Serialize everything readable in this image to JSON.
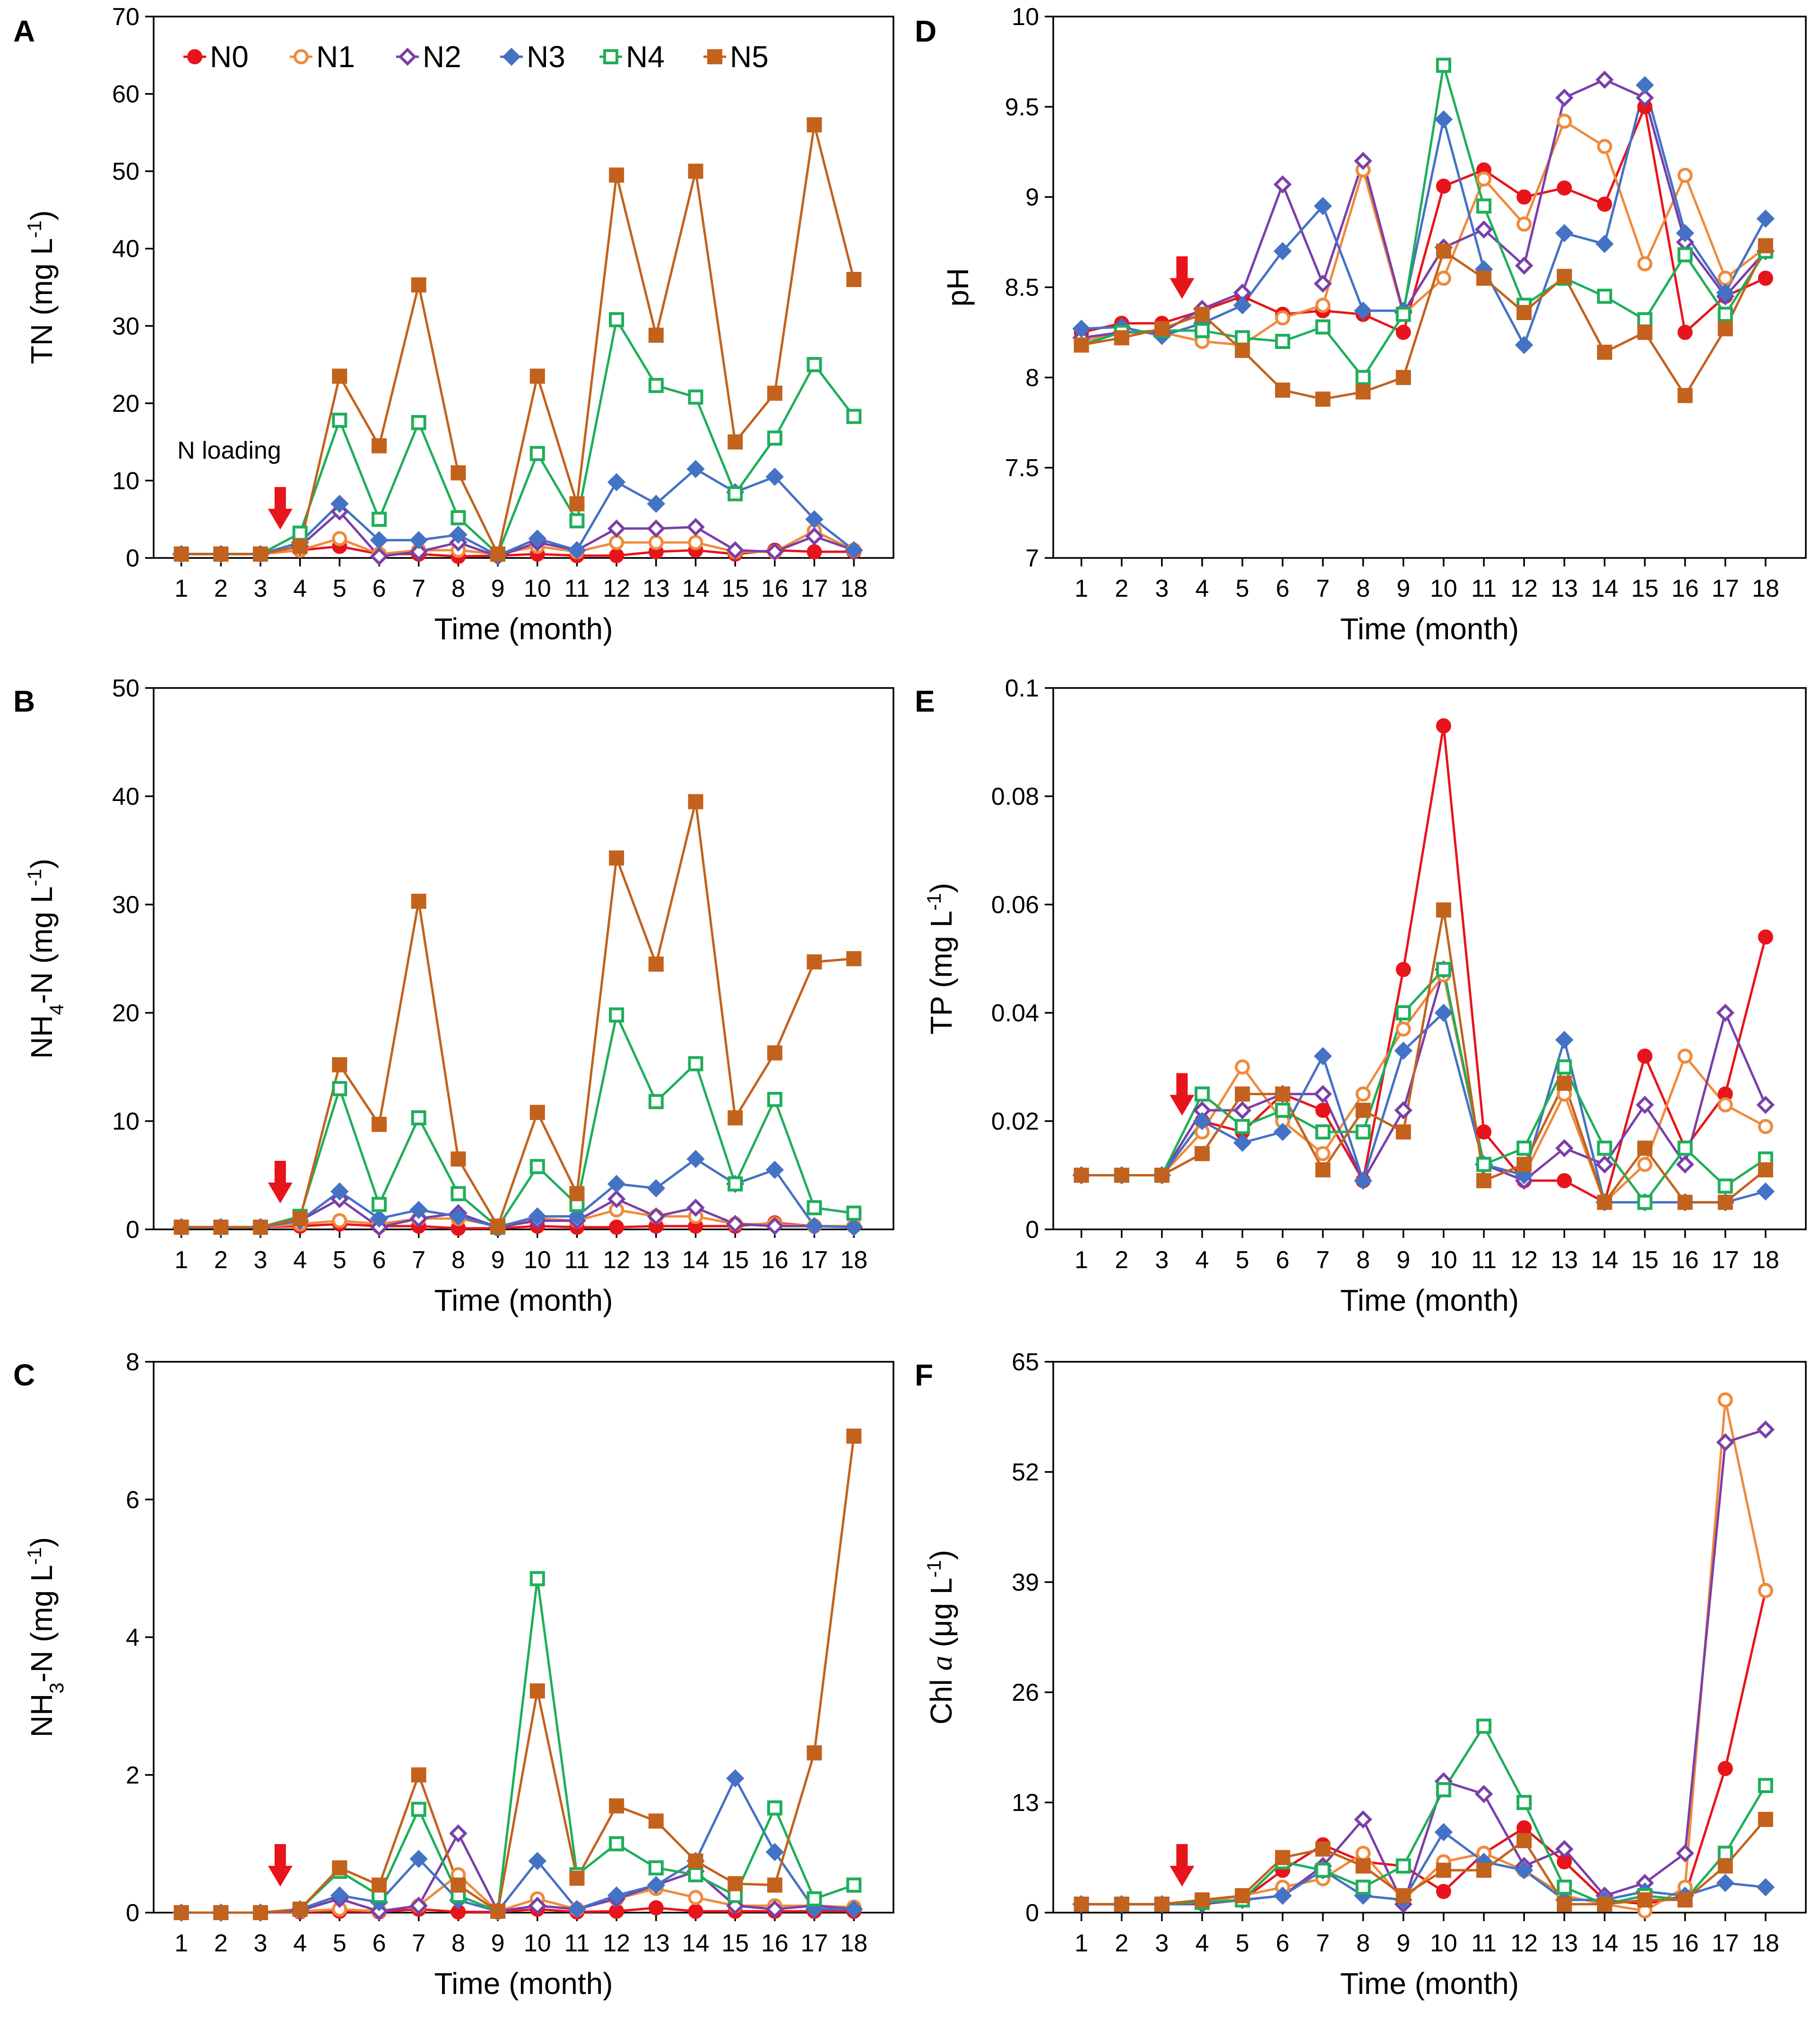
{
  "figure": {
    "legend_entries": [
      "N0",
      "N1",
      "N2",
      "N3",
      "N4",
      "N5"
    ]
  },
  "chart_data": [
    {
      "panel": "A",
      "type": "line",
      "xlabel": "Time (month)",
      "ylabel": "TN (mg L-1)",
      "ylabel_parts": [
        "TN (mg L",
        "-1",
        ")"
      ],
      "ylim": [
        0,
        70
      ],
      "yticks": [
        0,
        10,
        20,
        30,
        40,
        50,
        60,
        70
      ],
      "ytick_labels": [
        "0",
        "10",
        "20",
        "30",
        "40",
        "50",
        "60",
        "70"
      ],
      "annotation": "N loading",
      "arrow_at_x": 3.5,
      "x": [
        1,
        2,
        3,
        4,
        5,
        6,
        7,
        8,
        9,
        10,
        11,
        12,
        13,
        14,
        15,
        16,
        17,
        18
      ],
      "series": [
        {
          "name": "N0",
          "values": [
            0.5,
            0.5,
            0.5,
            1.0,
            1.5,
            0.5,
            0.5,
            0.2,
            0.3,
            0.5,
            0.3,
            0.3,
            0.8,
            1.0,
            0.5,
            1.0,
            0.8,
            0.8
          ]
        },
        {
          "name": "N1",
          "values": [
            0.5,
            0.5,
            0.5,
            1.0,
            2.5,
            0.5,
            1.0,
            1.0,
            0.5,
            1.5,
            0.8,
            2.0,
            2.0,
            2.0,
            0.8,
            0.8,
            3.5,
            1.0
          ]
        },
        {
          "name": "N2",
          "values": [
            0.5,
            0.5,
            0.5,
            1.5,
            6.0,
            0.2,
            0.8,
            2.0,
            0.2,
            2.0,
            1.0,
            3.8,
            3.8,
            4.0,
            1.0,
            0.8,
            2.8,
            1.0
          ]
        },
        {
          "name": "N3",
          "values": [
            0.5,
            0.5,
            0.5,
            2.0,
            7.0,
            2.3,
            2.3,
            3.0,
            0.3,
            2.5,
            1.0,
            9.8,
            7.0,
            11.5,
            8.5,
            10.5,
            5.0,
            1.0
          ]
        },
        {
          "name": "N4",
          "values": [
            0.5,
            0.5,
            0.5,
            3.2,
            17.8,
            5.0,
            17.5,
            5.2,
            0.5,
            13.5,
            4.8,
            30.8,
            22.3,
            20.8,
            8.3,
            15.5,
            25.0,
            18.3
          ]
        },
        {
          "name": "N5",
          "values": [
            0.5,
            0.5,
            0.5,
            1.5,
            23.5,
            14.5,
            35.3,
            11.0,
            0.5,
            23.5,
            7.0,
            49.5,
            28.8,
            50.0,
            15.0,
            21.3,
            56.0,
            36.0
          ]
        }
      ]
    },
    {
      "panel": "B",
      "type": "line",
      "xlabel": "Time (month)",
      "ylabel": "NH4-N (mg L-1)",
      "ylabel_parts": [
        "NH",
        "4",
        "-N (mg L",
        "-1",
        ")"
      ],
      "ylim": [
        0,
        50
      ],
      "yticks": [
        0,
        10,
        20,
        30,
        40,
        50
      ],
      "ytick_labels": [
        "0",
        "10",
        "20",
        "30",
        "40",
        "50"
      ],
      "arrow_at_x": 3.5,
      "x": [
        1,
        2,
        3,
        4,
        5,
        6,
        7,
        8,
        9,
        10,
        11,
        12,
        13,
        14,
        15,
        16,
        17,
        18
      ],
      "series": [
        {
          "name": "N0",
          "values": [
            0.2,
            0.2,
            0.2,
            0.3,
            0.5,
            0.3,
            0.3,
            0.1,
            0.1,
            0.3,
            0.2,
            0.2,
            0.3,
            0.3,
            0.3,
            0.6,
            0.3,
            0.3
          ]
        },
        {
          "name": "N1",
          "values": [
            0.2,
            0.2,
            0.2,
            0.5,
            0.8,
            0.5,
            1.0,
            1.0,
            0.3,
            1.0,
            0.8,
            1.8,
            1.2,
            1.2,
            0.5,
            0.5,
            0.3,
            0.3
          ]
        },
        {
          "name": "N2",
          "values": [
            0.2,
            0.2,
            0.2,
            0.8,
            2.8,
            0.2,
            1.0,
            1.5,
            0.2,
            0.8,
            0.8,
            2.8,
            1.2,
            2.0,
            0.5,
            0.3,
            0.3,
            0.2
          ]
        },
        {
          "name": "N3",
          "values": [
            0.2,
            0.2,
            0.2,
            0.8,
            3.5,
            1.0,
            1.8,
            1.2,
            0.2,
            1.2,
            1.2,
            4.2,
            3.8,
            6.5,
            4.2,
            5.5,
            0.3,
            0.2
          ]
        },
        {
          "name": "N4",
          "values": [
            0.2,
            0.2,
            0.2,
            1.2,
            13.0,
            2.3,
            10.3,
            3.3,
            0.2,
            5.8,
            2.3,
            19.8,
            11.8,
            15.3,
            4.2,
            12.0,
            2.0,
            1.5
          ]
        },
        {
          "name": "N5",
          "values": [
            0.2,
            0.2,
            0.2,
            1.0,
            15.2,
            9.7,
            30.3,
            6.5,
            0.3,
            10.8,
            3.3,
            34.3,
            24.5,
            39.5,
            10.3,
            16.3,
            24.7,
            25.0
          ]
        }
      ]
    },
    {
      "panel": "C",
      "type": "line",
      "xlabel": "Time (month)",
      "ylabel": "NH3-N (mg L-1)",
      "ylabel_parts": [
        "NH",
        "3",
        "-N (mg L",
        "-1",
        ")"
      ],
      "ylim": [
        0,
        8
      ],
      "yticks": [
        0,
        2,
        4,
        6,
        8
      ],
      "ytick_labels": [
        "0",
        "2",
        "4",
        "6",
        "8"
      ],
      "arrow_at_x": 3.5,
      "x": [
        1,
        2,
        3,
        4,
        5,
        6,
        7,
        8,
        9,
        10,
        11,
        12,
        13,
        14,
        15,
        16,
        17,
        18
      ],
      "series": [
        {
          "name": "N0",
          "values": [
            0,
            0,
            0,
            0.01,
            0.02,
            0.01,
            0.05,
            0.01,
            0.01,
            0.05,
            0.01,
            0.02,
            0.07,
            0.02,
            0.02,
            0.02,
            0.02,
            0.02
          ]
        },
        {
          "name": "N1",
          "values": [
            0,
            0,
            0,
            0.02,
            0.05,
            0.02,
            0.1,
            0.55,
            0.02,
            0.2,
            0.05,
            0.2,
            0.35,
            0.22,
            0.1,
            0.1,
            0.1,
            0.08
          ]
        },
        {
          "name": "N2",
          "values": [
            0,
            0,
            0,
            0.03,
            0.2,
            0.02,
            0.1,
            1.15,
            0.02,
            0.1,
            0.05,
            0.2,
            0.4,
            0.6,
            0.1,
            0.05,
            0.1,
            0.05
          ]
        },
        {
          "name": "N3",
          "values": [
            0,
            0,
            0,
            0.05,
            0.25,
            0.15,
            0.78,
            0.18,
            0.02,
            0.75,
            0.05,
            0.25,
            0.4,
            0.75,
            1.95,
            0.88,
            0.05,
            0.05
          ]
        },
        {
          "name": "N4",
          "values": [
            0,
            0,
            0,
            0.05,
            0.6,
            0.25,
            1.5,
            0.25,
            0.02,
            4.85,
            0.55,
            1.0,
            0.65,
            0.55,
            0.25,
            1.52,
            0.2,
            0.4
          ]
        },
        {
          "name": "N5",
          "values": [
            0,
            0,
            0,
            0.05,
            0.65,
            0.4,
            2.0,
            0.4,
            0.02,
            3.22,
            0.5,
            1.55,
            1.33,
            0.75,
            0.42,
            0.4,
            2.32,
            6.92
          ]
        }
      ]
    },
    {
      "panel": "D",
      "type": "line",
      "xlabel": "Time (month)",
      "ylabel": "pH",
      "ylabel_parts": [
        "pH"
      ],
      "ylim": [
        7,
        10
      ],
      "yticks": [
        7,
        7.5,
        8,
        8.5,
        9,
        9.5,
        10
      ],
      "ytick_labels": [
        "7",
        "7.5",
        "8",
        "8.5",
        "9",
        "9.5",
        "10"
      ],
      "arrow_at_x": 3.5,
      "x": [
        1,
        2,
        3,
        4,
        5,
        6,
        7,
        8,
        9,
        10,
        11,
        12,
        13,
        14,
        15,
        16,
        17,
        18
      ],
      "series": [
        {
          "name": "N0",
          "values": [
            8.25,
            8.3,
            8.3,
            8.37,
            8.45,
            8.35,
            8.37,
            8.35,
            8.25,
            9.06,
            9.15,
            9.0,
            9.05,
            8.96,
            9.5,
            8.25,
            8.45,
            8.55
          ]
        },
        {
          "name": "N1",
          "values": [
            8.2,
            8.25,
            8.25,
            8.2,
            8.18,
            8.33,
            8.4,
            9.15,
            8.35,
            8.55,
            9.1,
            8.85,
            9.42,
            9.28,
            8.63,
            9.12,
            8.55,
            8.72
          ]
        },
        {
          "name": "N2",
          "values": [
            8.22,
            8.25,
            8.25,
            8.38,
            8.47,
            9.07,
            8.52,
            9.2,
            8.36,
            8.72,
            8.82,
            8.62,
            9.55,
            9.65,
            9.55,
            8.75,
            8.45,
            8.7
          ]
        },
        {
          "name": "N3",
          "values": [
            8.27,
            8.28,
            8.23,
            8.3,
            8.4,
            8.7,
            8.95,
            8.37,
            8.37,
            9.43,
            8.6,
            8.18,
            8.8,
            8.74,
            9.62,
            8.8,
            8.47,
            8.88
          ]
        },
        {
          "name": "N4",
          "values": [
            8.18,
            8.25,
            8.26,
            8.26,
            8.22,
            8.2,
            8.28,
            8.0,
            8.35,
            9.73,
            8.95,
            8.4,
            8.55,
            8.45,
            8.32,
            8.68,
            8.35,
            8.7
          ]
        },
        {
          "name": "N5",
          "values": [
            8.18,
            8.22,
            8.27,
            8.35,
            8.15,
            7.93,
            7.88,
            7.92,
            8.0,
            8.7,
            8.55,
            8.36,
            8.56,
            8.14,
            8.25,
            7.9,
            8.27,
            8.73
          ]
        }
      ]
    },
    {
      "panel": "E",
      "type": "line",
      "xlabel": "Time (month)",
      "ylabel": "TP (mg L-1)",
      "ylabel_parts": [
        "TP (mg L",
        "-1",
        ")"
      ],
      "ylim": [
        0,
        0.1
      ],
      "yticks": [
        0,
        0.02,
        0.04,
        0.06,
        0.08,
        0.1
      ],
      "ytick_labels": [
        "0",
        "0.02",
        "0.04",
        "0.06",
        "0.08",
        "0.1"
      ],
      "arrow_at_x": 3.5,
      "x": [
        1,
        2,
        3,
        4,
        5,
        6,
        7,
        8,
        9,
        10,
        11,
        12,
        13,
        14,
        15,
        16,
        17,
        18
      ],
      "series": [
        {
          "name": "N0",
          "values": [
            0.01,
            0.01,
            0.01,
            0.02,
            0.018,
            0.025,
            0.022,
            0.009,
            0.048,
            0.093,
            0.018,
            0.009,
            0.009,
            0.005,
            0.032,
            0.015,
            0.025,
            0.054
          ]
        },
        {
          "name": "N1",
          "values": [
            0.01,
            0.01,
            0.01,
            0.018,
            0.03,
            0.02,
            0.014,
            0.025,
            0.037,
            0.047,
            0.012,
            0.01,
            0.025,
            0.005,
            0.012,
            0.032,
            0.023,
            0.019
          ]
        },
        {
          "name": "N2",
          "values": [
            0.01,
            0.01,
            0.01,
            0.022,
            0.022,
            0.025,
            0.025,
            0.009,
            0.022,
            0.048,
            0.012,
            0.009,
            0.015,
            0.012,
            0.023,
            0.012,
            0.04,
            0.023
          ]
        },
        {
          "name": "N3",
          "values": [
            0.01,
            0.01,
            0.01,
            0.02,
            0.016,
            0.018,
            0.032,
            0.009,
            0.033,
            0.04,
            0.012,
            0.01,
            0.035,
            0.005,
            0.005,
            0.005,
            0.005,
            0.007
          ]
        },
        {
          "name": "N4",
          "values": [
            0.01,
            0.01,
            0.01,
            0.025,
            0.019,
            0.022,
            0.018,
            0.018,
            0.04,
            0.048,
            0.012,
            0.015,
            0.03,
            0.015,
            0.005,
            0.015,
            0.008,
            0.013
          ]
        },
        {
          "name": "N5",
          "values": [
            0.01,
            0.01,
            0.01,
            0.014,
            0.025,
            0.025,
            0.011,
            0.022,
            0.018,
            0.059,
            0.009,
            0.012,
            0.027,
            0.005,
            0.015,
            0.005,
            0.005,
            0.011
          ]
        }
      ]
    },
    {
      "panel": "F",
      "type": "line",
      "xlabel": "Time (month)",
      "ylabel": "Chl a (μg L-1)",
      "ylabel_parts": [
        "Chl ",
        "a",
        " (μg L",
        "-1",
        ")"
      ],
      "ylim": [
        0,
        65
      ],
      "yticks": [
        0,
        13,
        26,
        39,
        52,
        65
      ],
      "ytick_labels": [
        "0",
        "13",
        "26",
        "39",
        "52",
        "65"
      ],
      "arrow_at_x": 3.5,
      "x": [
        1,
        2,
        3,
        4,
        5,
        6,
        7,
        8,
        9,
        10,
        11,
        12,
        13,
        14,
        15,
        16,
        17,
        18
      ],
      "series": [
        {
          "name": "N0",
          "values": [
            1.0,
            1.0,
            1.0,
            1.2,
            1.5,
            5.0,
            8.0,
            6.0,
            5.5,
            2.5,
            7.0,
            10.0,
            6.0,
            1.5,
            1.0,
            2.0,
            17.0,
            38.0
          ]
        },
        {
          "name": "N1",
          "values": [
            1.0,
            1.0,
            1.0,
            1.2,
            2.0,
            3.0,
            4.0,
            7.0,
            1.5,
            6.0,
            7.0,
            5.0,
            2.0,
            1.0,
            0.2,
            3.0,
            60.5,
            38.0
          ]
        },
        {
          "name": "N2",
          "values": [
            1.0,
            1.0,
            1.0,
            1.0,
            1.5,
            2.0,
            5.5,
            11.0,
            1.0,
            15.5,
            14.0,
            5.5,
            7.5,
            2.0,
            3.5,
            7.0,
            55.5,
            57.0
          ]
        },
        {
          "name": "N3",
          "values": [
            1.0,
            1.0,
            1.0,
            1.2,
            1.5,
            2.0,
            5.0,
            2.0,
            1.5,
            9.5,
            6.0,
            5.0,
            1.5,
            1.5,
            2.5,
            2.0,
            3.5,
            3.0
          ]
        },
        {
          "name": "N4",
          "values": [
            1.0,
            1.0,
            1.0,
            1.2,
            1.5,
            6.0,
            5.0,
            3.0,
            5.5,
            14.5,
            22.0,
            13.0,
            3.0,
            1.0,
            2.0,
            1.5,
            7.0,
            15.0
          ]
        },
        {
          "name": "N5",
          "values": [
            1.0,
            1.0,
            1.0,
            1.5,
            2.0,
            6.5,
            7.5,
            5.5,
            2.0,
            5.0,
            5.0,
            8.5,
            1.0,
            1.0,
            1.5,
            1.5,
            5.5,
            11.0
          ]
        }
      ]
    }
  ]
}
